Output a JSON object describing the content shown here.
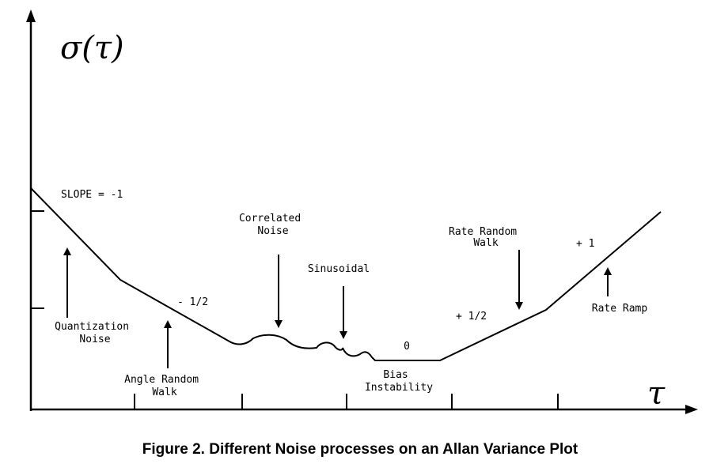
{
  "axes": {
    "y_label": "σ(τ)",
    "x_label": "τ"
  },
  "labels": {
    "slope_minus_1": "SLOPE = -1",
    "quantization_line1": "Quantization",
    "quantization_line2": "Noise",
    "slope_minus_half": "- 1/2",
    "angle_random_walk_line1": "Angle Random",
    "angle_random_walk_line2": "Walk",
    "correlated_line1": "Correlated",
    "correlated_line2": "Noise",
    "sinusoidal": "Sinusoidal",
    "slope_zero": "0",
    "bias_line1": "Bias",
    "bias_line2": "Instability",
    "slope_plus_half": "+ 1/2",
    "rate_random_walk_line1": "Rate Random",
    "rate_random_walk_line2": "Walk",
    "slope_plus_1": "+ 1",
    "rate_ramp": "Rate Ramp"
  },
  "caption": "Figure 2. Different Noise processes on an Allan Variance Plot"
}
